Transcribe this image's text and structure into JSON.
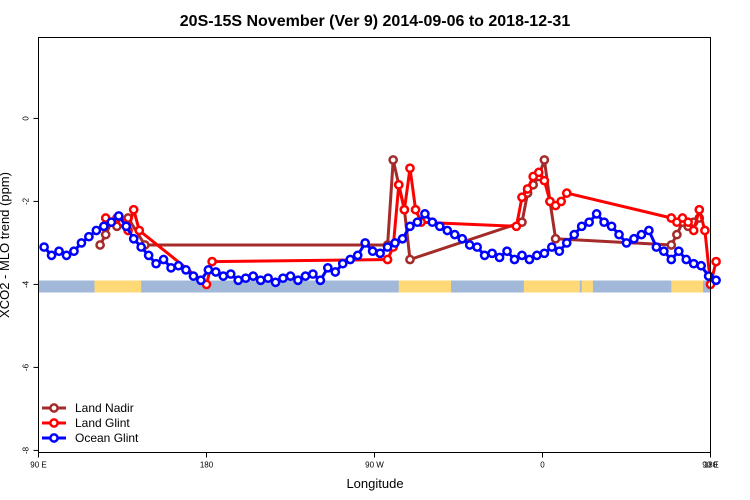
{
  "chart_data": {
    "type": "line",
    "title": "20S-15S November (Ver 9)   2014-09-06 to 2018-12-31",
    "xlabel": "Longitude",
    "ylabel": "XCO2 - MLO trend (ppm)",
    "xlim": [
      90,
      450
    ],
    "ylim": [
      -8,
      2
    ],
    "x_ticks": [
      {
        "value": 90,
        "label": "90 E"
      },
      {
        "value": 180,
        "label": "180"
      },
      {
        "value": 270,
        "label": "90 W"
      },
      {
        "value": 360,
        "label": "0"
      },
      {
        "value": 450,
        "label": "90 E"
      },
      {
        "value": 540,
        "label": "180"
      }
    ],
    "y_ticks": [
      {
        "value": 0,
        "label": "0"
      },
      {
        "value": -2,
        "label": "-2"
      },
      {
        "value": -4,
        "label": "-4"
      },
      {
        "value": -6,
        "label": "-6"
      },
      {
        "value": -8,
        "label": "-8"
      }
    ],
    "legend_position": "bottom-left",
    "colors": {
      "land_nadir": "#a52a2a",
      "land_glint": "#ff0000",
      "ocean_glint": "#0000ff",
      "ocean_band": "#a2b8d8",
      "land_band": "#ffd978"
    },
    "series": [
      {
        "name": "Land Nadir",
        "color": "#a52a2a",
        "x": [
          123,
          126,
          129,
          132,
          135,
          138,
          147,
          277,
          280,
          283,
          286,
          289,
          349,
          352,
          355,
          358,
          361,
          364,
          367,
          429,
          432,
          435,
          438,
          441,
          444
        ],
        "y": [
          -3.05,
          -2.8,
          -2.5,
          -2.6,
          -2.5,
          -2.4,
          -3.05,
          -3.05,
          -1.0,
          -1.6,
          -2.2,
          -3.4,
          -2.5,
          -1.8,
          -1.6,
          -1.4,
          -1.0,
          -2.0,
          -2.9,
          -3.05,
          -2.8,
          -2.5,
          -2.6,
          -2.5,
          -2.4
        ]
      },
      {
        "name": "Land Glint",
        "color": "#ff0000",
        "x": [
          126,
          129,
          132,
          135,
          138,
          141,
          144,
          180,
          183,
          277,
          280,
          283,
          286,
          289,
          292,
          295,
          346,
          349,
          352,
          355,
          358,
          361,
          364,
          367,
          370,
          373,
          429,
          432,
          435,
          438,
          441,
          444,
          447,
          450,
          453
        ],
        "y": [
          -2.4,
          -2.5,
          -2.4,
          -2.5,
          -2.7,
          -2.2,
          -2.7,
          -4.0,
          -3.45,
          -3.4,
          -3.1,
          -1.6,
          -2.2,
          -1.2,
          -2.2,
          -2.5,
          -2.6,
          -1.9,
          -1.7,
          -1.4,
          -1.3,
          -1.5,
          -2.0,
          -2.1,
          -2.0,
          -1.8,
          -2.4,
          -2.5,
          -2.4,
          -2.5,
          -2.7,
          -2.2,
          -2.7,
          -4.0,
          -3.45
        ]
      },
      {
        "name": "Ocean Glint",
        "color": "#0000ff",
        "x": [
          93,
          97,
          101,
          105,
          109,
          113,
          117,
          121,
          125,
          129,
          133,
          137,
          141,
          145,
          149,
          153,
          157,
          161,
          165,
          169,
          173,
          177,
          181,
          185,
          189,
          193,
          197,
          201,
          205,
          209,
          213,
          217,
          221,
          225,
          229,
          233,
          237,
          241,
          245,
          249,
          253,
          257,
          261,
          265,
          269,
          273,
          277,
          281,
          285,
          289,
          293,
          297,
          301,
          305,
          309,
          313,
          317,
          321,
          325,
          329,
          333,
          337,
          341,
          345,
          349,
          353,
          357,
          361,
          365,
          369,
          373,
          377,
          381,
          385,
          389,
          393,
          397,
          401,
          405,
          409,
          413,
          417,
          421,
          425,
          429,
          433,
          437,
          441,
          445,
          449,
          453
        ],
        "y": [
          -3.1,
          -3.3,
          -3.2,
          -3.3,
          -3.2,
          -3.0,
          -2.85,
          -2.7,
          -2.6,
          -2.5,
          -2.35,
          -2.6,
          -2.9,
          -3.1,
          -3.3,
          -3.5,
          -3.4,
          -3.6,
          -3.55,
          -3.65,
          -3.8,
          -3.9,
          -3.65,
          -3.7,
          -3.8,
          -3.75,
          -3.9,
          -3.85,
          -3.8,
          -3.9,
          -3.85,
          -3.95,
          -3.85,
          -3.8,
          -3.9,
          -3.8,
          -3.75,
          -3.9,
          -3.6,
          -3.7,
          -3.5,
          -3.4,
          -3.3,
          -3.0,
          -3.2,
          -3.25,
          -3.1,
          -3.0,
          -2.9,
          -2.6,
          -2.5,
          -2.3,
          -2.5,
          -2.6,
          -2.7,
          -2.8,
          -2.9,
          -3.05,
          -3.1,
          -3.3,
          -3.25,
          -3.35,
          -3.2,
          -3.4,
          -3.3,
          -3.4,
          -3.3,
          -3.25,
          -3.1,
          -3.2,
          -3.0,
          -2.8,
          -2.6,
          -2.5,
          -2.3,
          -2.5,
          -2.6,
          -2.8,
          -3.0,
          -2.9,
          -2.8,
          -2.7,
          -3.1,
          -3.2,
          -3.4,
          -3.2,
          -3.4,
          -3.5,
          -3.55,
          -3.8,
          -3.9
        ]
      }
    ],
    "surface_band": {
      "y": -4.05,
      "land_segments": [
        [
          120,
          145
        ],
        [
          283,
          311
        ],
        [
          350,
          380
        ],
        [
          381,
          387
        ],
        [
          429,
          446
        ]
      ]
    }
  }
}
